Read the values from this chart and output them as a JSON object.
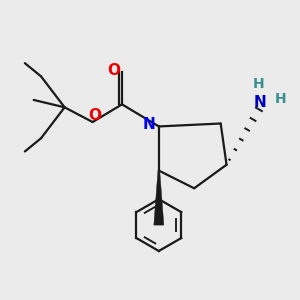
{
  "bg_color": "#ebebeb",
  "bond_color": "#1a1a1a",
  "N_color": "#0000ee",
  "O_color": "#ee0000",
  "NH2_N_color": "#0000bb",
  "NH2_H_color": "#3a9090",
  "figsize": [
    3.0,
    3.0
  ],
  "dpi": 100,
  "xlim": [
    0,
    10
  ],
  "ylim": [
    0,
    10
  ],
  "lw": 1.6,
  "font_size_atom": 11,
  "font_size_H": 10
}
